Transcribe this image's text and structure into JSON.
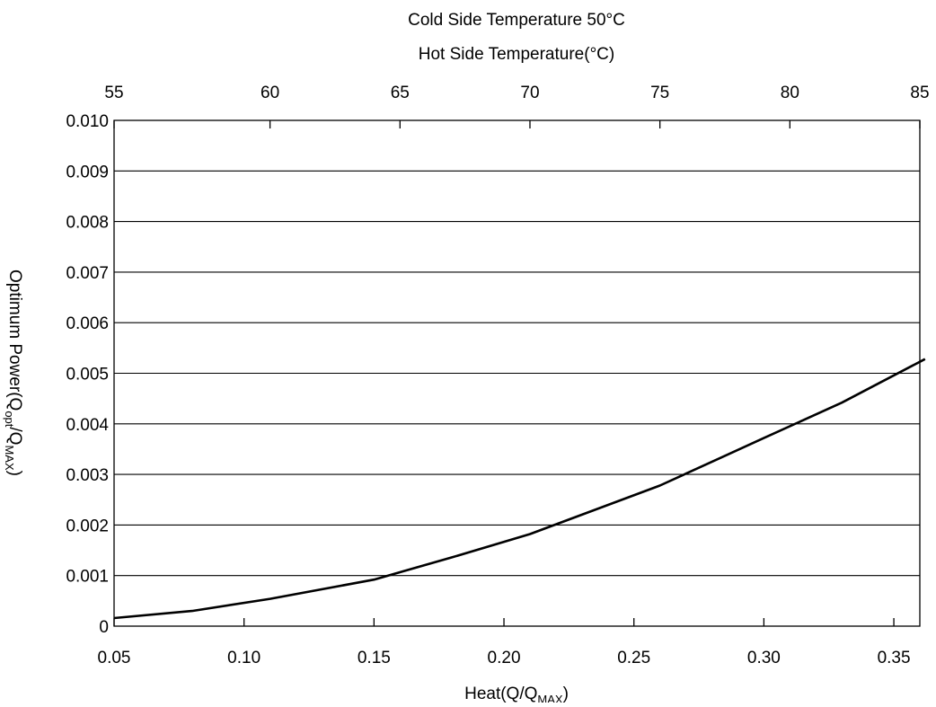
{
  "chart_data": {
    "type": "line",
    "title": "Cold Side Temperature 50°C",
    "top_axis": {
      "label": "Hot Side Temperature(°C)",
      "ticks": [
        55,
        60,
        65,
        70,
        75,
        80,
        85
      ],
      "tick_x_values": [
        0.05,
        0.11,
        0.16,
        0.21,
        0.26,
        0.31,
        0.36
      ]
    },
    "xlabel": {
      "main": "Heat(Q/Q",
      "sub": "MAX",
      "close": ")"
    },
    "ylabel": {
      "main": "Optimum Power(Q",
      "sub1": "opt",
      "mid": "/Q",
      "sub2": "MAX",
      "close": ")"
    },
    "xlim": [
      0.05,
      0.36
    ],
    "ylim": [
      0,
      0.01
    ],
    "x_ticks": [
      {
        "value": 0.05,
        "label": "0.05"
      },
      {
        "value": 0.1,
        "label": "0.10"
      },
      {
        "value": 0.15,
        "label": "0.15"
      },
      {
        "value": 0.2,
        "label": "0.20"
      },
      {
        "value": 0.25,
        "label": "0.25"
      },
      {
        "value": 0.3,
        "label": "0.30"
      },
      {
        "value": 0.35,
        "label": "0.35"
      }
    ],
    "y_ticks": [
      {
        "value": 0,
        "label": "0"
      },
      {
        "value": 0.001,
        "label": "0.001"
      },
      {
        "value": 0.002,
        "label": "0.002"
      },
      {
        "value": 0.003,
        "label": "0.003"
      },
      {
        "value": 0.004,
        "label": "0.004"
      },
      {
        "value": 0.005,
        "label": "0.005"
      },
      {
        "value": 0.006,
        "label": "0.006"
      },
      {
        "value": 0.007,
        "label": "0.007"
      },
      {
        "value": 0.008,
        "label": "0.008"
      },
      {
        "value": 0.009,
        "label": "0.009"
      },
      {
        "value": 0.01,
        "label": "0.010"
      }
    ],
    "grid": "horizontal",
    "series": [
      {
        "x": [
          0.05,
          0.08,
          0.11,
          0.15,
          0.18,
          0.21,
          0.235,
          0.26,
          0.3,
          0.33,
          0.362
        ],
        "y": [
          0.00016,
          0.0003,
          0.00054,
          0.00092,
          0.00136,
          0.00182,
          0.0023,
          0.00278,
          0.00372,
          0.00442,
          0.00528
        ]
      }
    ],
    "line_color": "#000000"
  }
}
